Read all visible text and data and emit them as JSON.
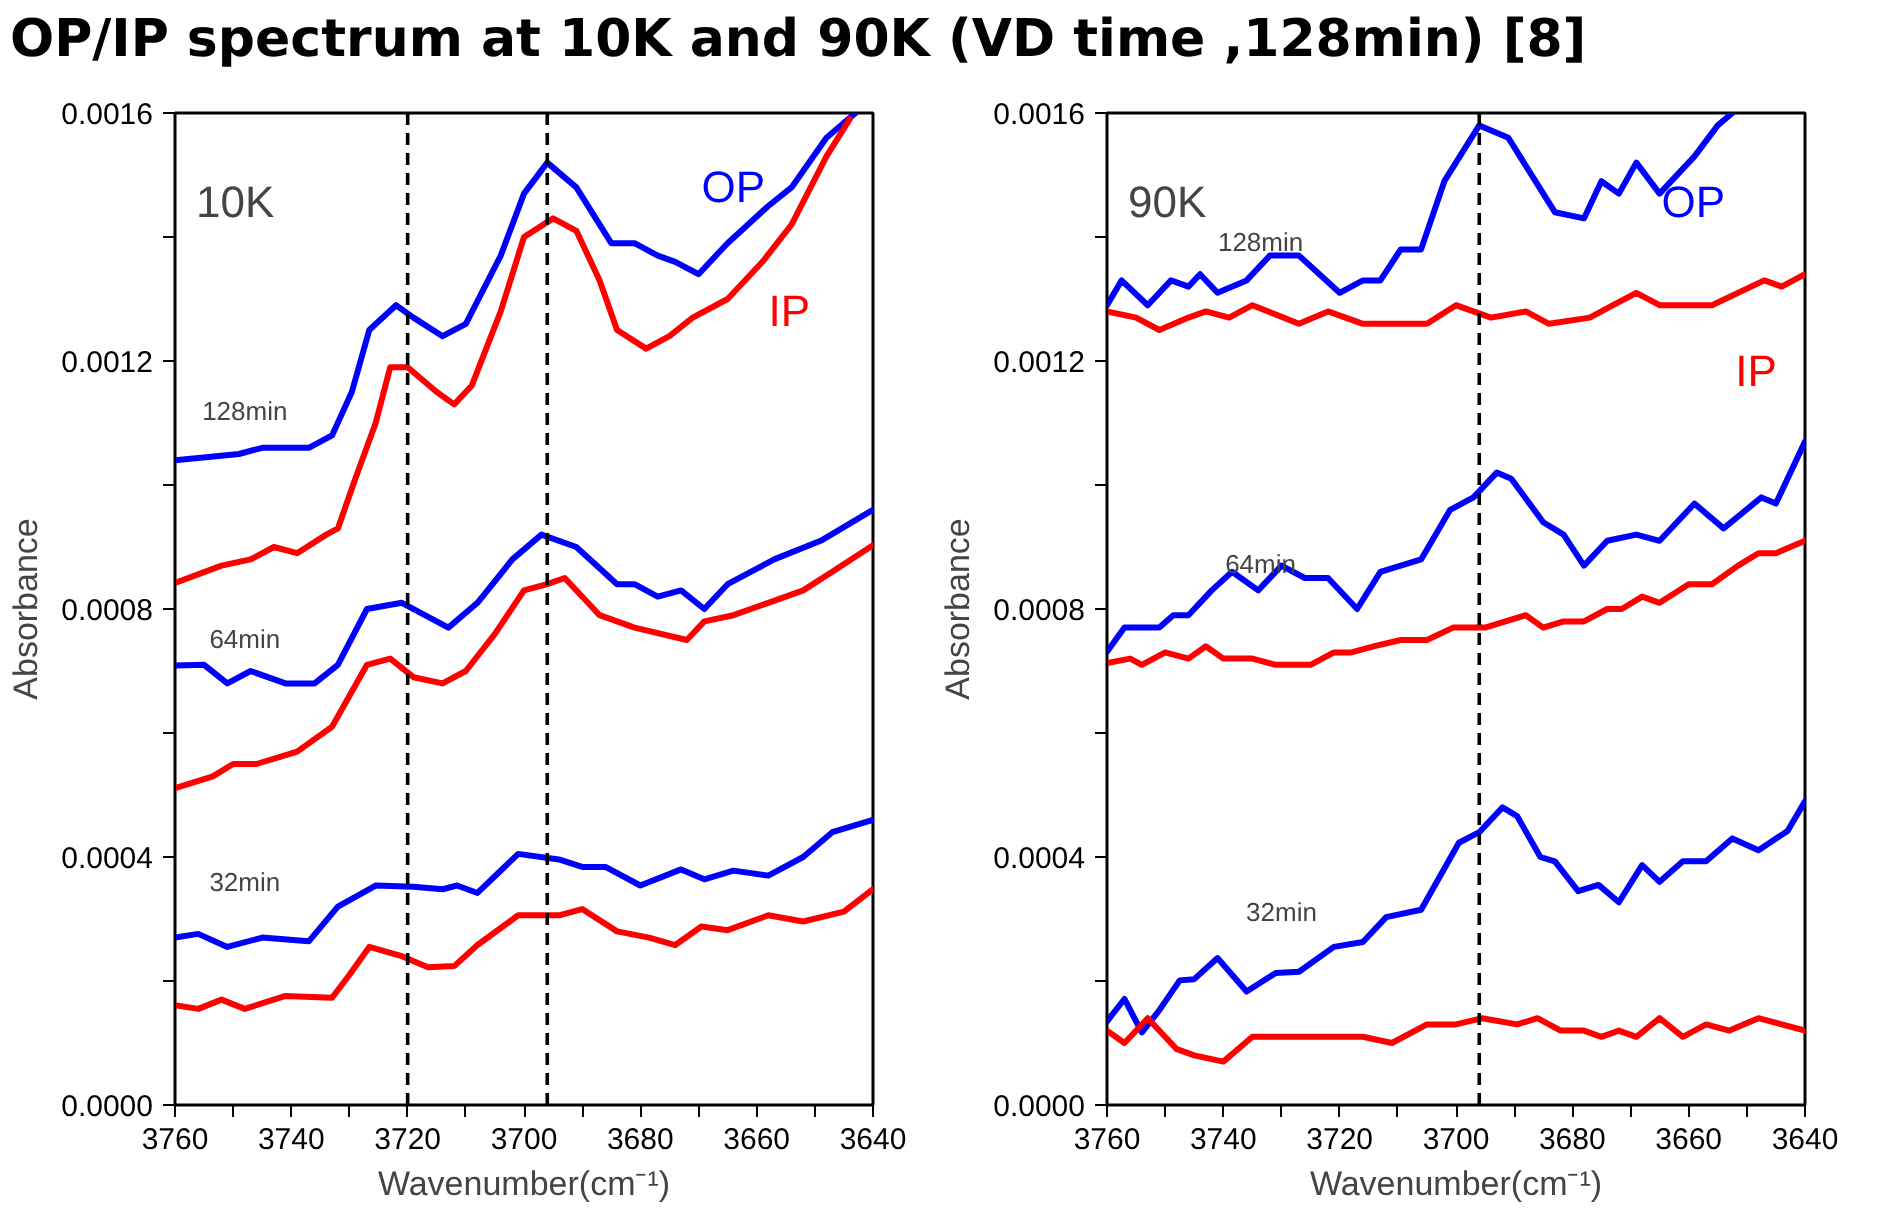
{
  "chart_data": [
    {
      "type": "line",
      "title": "OP/IP spectrum at 10K and 90K (VD time ,128min) [8]",
      "xlabel": "Wavenumber(cm⁻¹)",
      "ylabel": "Absorbance",
      "xlim": [
        3760,
        3640
      ],
      "ylim": [
        0,
        0.0016
      ],
      "xticks": [
        3760,
        {
          "value": 3750,
          "label": null
        },
        3740,
        {
          "value": 3730,
          "label": null
        },
        3720,
        {
          "value": 3710,
          "label": null
        },
        3700,
        {
          "value": 3690,
          "label": null
        },
        3680,
        {
          "value": 3670,
          "label": null
        },
        3660,
        {
          "value": 3650,
          "label": null
        },
        3640
      ],
      "yticks": [
        {
          "value": 0,
          "label": "0.0000"
        },
        {
          "value": 0.0002,
          "label": null
        },
        {
          "value": 0.0004,
          "label": "0.0004"
        },
        {
          "value": 0.0006,
          "label": null
        },
        {
          "value": 0.0008,
          "label": "0.0008"
        },
        {
          "value": 0.001,
          "label": null
        },
        {
          "value": 0.0012,
          "label": "0.0012"
        },
        {
          "value": 0.0014,
          "label": null
        },
        {
          "value": 0.0016,
          "label": "0.0016"
        }
      ],
      "ref_lines": [
        {
          "axis": "x",
          "value": 3720,
          "color": "#000000",
          "line_style": "dashed"
        },
        {
          "axis": "x",
          "value": 3696,
          "color": "#000000",
          "line_style": "dashed"
        }
      ],
      "annotations": [
        "10K",
        "128min",
        "64min",
        "32min"
      ],
      "series": [
        {
          "name": "OP",
          "color": "#0000ff",
          "x": [
            3760,
            3749,
            3745,
            3737,
            3733,
            3729.6,
            3726.6,
            3722,
            3719,
            3714,
            3710,
            3704,
            3700,
            3696,
            3691,
            3685,
            3681,
            3677,
            3674,
            3670,
            3665,
            3658,
            3654,
            3648,
            3643
          ],
          "values": [
            0.00104,
            0.00105,
            0.00106,
            0.00106,
            0.00108,
            0.00115,
            0.00125,
            0.00129,
            0.00127,
            0.00124,
            0.00126,
            0.00137,
            0.00147,
            0.00152,
            0.00148,
            0.00139,
            0.00139,
            0.00137,
            0.00136,
            0.00134,
            0.00139,
            0.00145,
            0.00148,
            0.00156,
            0.0016
          ]
        },
        {
          "name": "IP",
          "color": "#ff0000",
          "x": [
            3760,
            3752,
            3747,
            3743,
            3739,
            3734,
            3732,
            3729,
            3725.5,
            3723,
            3720,
            3715,
            3712,
            3709,
            3704,
            3700,
            3695,
            3691,
            3687,
            3684,
            3679,
            3675,
            3671,
            3665,
            3659,
            3654,
            3648,
            3644
          ],
          "values": [
            0.000842,
            0.00087,
            0.00088,
            0.0009,
            0.00089,
            0.00092,
            0.00093,
            0.00101,
            0.0011,
            0.00119,
            0.00119,
            0.00115,
            0.00113,
            0.00116,
            0.00128,
            0.0014,
            0.00143,
            0.00141,
            0.00133,
            0.00125,
            0.00122,
            0.00124,
            0.00127,
            0.0013,
            0.00136,
            0.00142,
            0.00153,
            0.00159
          ]
        },
        {
          "color": "#0000ff",
          "x": [
            3760,
            3755,
            3751,
            3747,
            3741,
            3736,
            3732,
            3727,
            3721,
            3713,
            3708,
            3702,
            3697,
            3691,
            3684,
            3681,
            3677,
            3673,
            3669,
            3665,
            3657,
            3649,
            3640
          ],
          "values": [
            0.000709,
            0.00071,
            0.00068,
            0.0007,
            0.00068,
            0.00068,
            0.00071,
            0.0008,
            0.00081,
            0.00077,
            0.00081,
            0.00088,
            0.00092,
            0.0009,
            0.00084,
            0.00084,
            0.00082,
            0.00083,
            0.0008,
            0.00084,
            0.00088,
            0.00091,
            0.00096
          ]
        },
        {
          "color": "#ff0000",
          "x": [
            3760,
            3753.5,
            3750,
            3746,
            3739,
            3733,
            3727,
            3723,
            3719,
            3714,
            3710,
            3705,
            3700,
            3696,
            3693,
            3687,
            3681,
            3672,
            3669,
            3664,
            3658,
            3652,
            3647,
            3640
          ],
          "values": [
            0.000511,
            0.00053,
            0.00055,
            0.00055,
            0.00057,
            0.00061,
            0.00071,
            0.00072,
            0.00069,
            0.00068,
            0.0007,
            0.00076,
            0.00083,
            0.00084,
            0.00085,
            0.00079,
            0.00077,
            0.00075,
            0.00078,
            0.00079,
            0.00081,
            0.00083,
            0.00086,
            0.000903
          ]
        },
        {
          "color": "#0000ff",
          "x": [
            3760,
            3756,
            3751,
            3745,
            3737,
            3732,
            3725.5,
            3719,
            3714,
            3711.5,
            3708,
            3701,
            3694,
            3690,
            3686,
            3680,
            3673,
            3669,
            3664,
            3658,
            3652,
            3647,
            3640
          ],
          "values": [
            0.00027,
            0.000276,
            0.000255,
            0.00027,
            0.000264,
            0.00032,
            0.000354,
            0.000352,
            0.000348,
            0.000354,
            0.000342,
            0.000405,
            0.000396,
            0.000384,
            0.000384,
            0.000354,
            0.00038,
            0.000364,
            0.000378,
            0.00037,
            0.0004,
            0.00044,
            0.00046
          ]
        },
        {
          "color": "#ff0000",
          "x": [
            3760,
            3756,
            3752,
            3748,
            3741,
            3733,
            3730,
            3726.6,
            3721,
            3716.5,
            3712,
            3708,
            3701,
            3694,
            3690,
            3684,
            3678.5,
            3674,
            3669.5,
            3665,
            3658,
            3652,
            3645,
            3640
          ],
          "values": [
            0.000161,
            0.000155,
            0.00017,
            0.000155,
            0.000176,
            0.000173,
            0.00021,
            0.000255,
            0.00024,
            0.000222,
            0.000224,
            0.000258,
            0.000306,
            0.000306,
            0.000316,
            0.00028,
            0.00027,
            0.000258,
            0.000288,
            0.000282,
            0.000306,
            0.000296,
            0.000312,
            0.000348
          ]
        }
      ]
    },
    {
      "type": "line",
      "xlabel": "Wavenumber(cm⁻¹)",
      "ylabel": "Absorbance",
      "xlim": [
        3760,
        3640
      ],
      "ylim": [
        0,
        0.0016
      ],
      "xticks": [
        3760,
        {
          "value": 3750,
          "label": null
        },
        3740,
        {
          "value": 3730,
          "label": null
        },
        3720,
        {
          "value": 3710,
          "label": null
        },
        3700,
        {
          "value": 3690,
          "label": null
        },
        3680,
        {
          "value": 3670,
          "label": null
        },
        3660,
        {
          "value": 3650,
          "label": null
        },
        3640
      ],
      "yticks": [
        {
          "value": 0,
          "label": "0.0000"
        },
        {
          "value": 0.0002,
          "label": null
        },
        {
          "value": 0.0004,
          "label": "0.0004"
        },
        {
          "value": 0.0006,
          "label": null
        },
        {
          "value": 0.0008,
          "label": "0.0008"
        },
        {
          "value": 0.001,
          "label": null
        },
        {
          "value": 0.0012,
          "label": "0.0012"
        },
        {
          "value": 0.0014,
          "label": null
        },
        {
          "value": 0.0016,
          "label": "0.0016"
        }
      ],
      "ref_lines": [
        {
          "axis": "x",
          "value": 3696,
          "color": "#000000",
          "line_style": "dashed"
        }
      ],
      "annotations": [
        "90K",
        "128min",
        "64min",
        "32min"
      ],
      "series": [
        {
          "name": "OP",
          "color": "#0000ff",
          "x": [
            3760,
            3757.5,
            3753,
            3749,
            3746,
            3744,
            3741,
            3736,
            3732,
            3727,
            3720,
            3716,
            3713,
            3709.5,
            3706,
            3702,
            3696,
            3691,
            3685,
            3683,
            3678,
            3675,
            3672,
            3669,
            3665,
            3659,
            3655,
            3652.5
          ],
          "values": [
            0.00129,
            0.00133,
            0.00129,
            0.00133,
            0.00132,
            0.00134,
            0.00131,
            0.00133,
            0.00137,
            0.00137,
            0.00131,
            0.00133,
            0.00133,
            0.00138,
            0.00138,
            0.00149,
            0.00158,
            0.00156,
            0.00147,
            0.00144,
            0.00143,
            0.00149,
            0.00147,
            0.00152,
            0.00147,
            0.00153,
            0.00158,
            0.0016
          ]
        },
        {
          "name": "IP",
          "color": "#ff0000",
          "x": [
            3760,
            3755,
            3751,
            3746,
            3743,
            3739,
            3735,
            3727,
            3722,
            3716,
            3705,
            3700,
            3694,
            3688,
            3684,
            3677,
            3673,
            3669,
            3665,
            3656,
            3647,
            3644,
            3640
          ],
          "values": [
            0.00128,
            0.00127,
            0.00125,
            0.00127,
            0.00128,
            0.00127,
            0.00129,
            0.00126,
            0.00128,
            0.00126,
            0.00126,
            0.00129,
            0.00127,
            0.00128,
            0.00126,
            0.00127,
            0.00129,
            0.00131,
            0.00129,
            0.00129,
            0.00133,
            0.00132,
            0.00134
          ]
        },
        {
          "color": "#0000ff",
          "x": [
            3760,
            3757,
            3754,
            3751,
            3748.6,
            3746,
            3742,
            3738.5,
            3734,
            3730,
            3726,
            3722,
            3717,
            3713,
            3706,
            3701,
            3697,
            3693,
            3690.5,
            3685,
            3681.5,
            3678,
            3674,
            3669,
            3665,
            3659,
            3654,
            3647.5,
            3645,
            3640
          ],
          "values": [
            0.000731,
            0.00077,
            0.00077,
            0.00077,
            0.00079,
            0.00079,
            0.00083,
            0.00086,
            0.00083,
            0.00087,
            0.00085,
            0.00085,
            0.0008,
            0.00086,
            0.00088,
            0.00096,
            0.00098,
            0.00102,
            0.00101,
            0.00094,
            0.00092,
            0.00087,
            0.00091,
            0.00092,
            0.00091,
            0.00097,
            0.00093,
            0.00098,
            0.00097,
            0.00107
          ]
        },
        {
          "color": "#ff0000",
          "x": [
            3760,
            3756,
            3754,
            3750,
            3746,
            3743,
            3740,
            3735,
            3731,
            3725,
            3721,
            3718,
            3714,
            3709.5,
            3705,
            3700.5,
            3695,
            3688,
            3685,
            3681.5,
            3678,
            3674,
            3671.5,
            3668,
            3665,
            3660,
            3656,
            3651.5,
            3648,
            3645,
            3640
          ],
          "values": [
            0.000713,
            0.00072,
            0.00071,
            0.00073,
            0.00072,
            0.00074,
            0.00072,
            0.00072,
            0.00071,
            0.00071,
            0.00073,
            0.00073,
            0.00074,
            0.00075,
            0.00075,
            0.00077,
            0.00077,
            0.00079,
            0.00077,
            0.00078,
            0.00078,
            0.0008,
            0.0008,
            0.00082,
            0.00081,
            0.00084,
            0.00084,
            0.00087,
            0.00089,
            0.00089,
            0.00091
          ]
        },
        {
          "color": "#0000ff",
          "x": [
            3760,
            3757,
            3754,
            3751,
            3747.5,
            3745,
            3741,
            3736,
            3731,
            3727,
            3721,
            3716,
            3712,
            3706,
            3699.5,
            3696,
            3692,
            3689.5,
            3685.5,
            3683,
            3679,
            3675.5,
            3672,
            3668,
            3665,
            3661,
            3657,
            3652.5,
            3648,
            3643,
            3640
          ],
          "values": [
            0.000135,
            0.000171,
            0.000117,
            0.000153,
            0.000201,
            0.000203,
            0.000237,
            0.000183,
            0.000213,
            0.000215,
            0.000255,
            0.000263,
            0.000303,
            0.000315,
            0.000423,
            0.00044,
            0.00048,
            0.000466,
            0.0004,
            0.000393,
            0.000345,
            0.000355,
            0.000327,
            0.000387,
            0.00036,
            0.000393,
            0.000393,
            0.00043,
            0.000411,
            0.000442,
            0.00049
          ]
        },
        {
          "color": "#ff0000",
          "x": [
            3760,
            3757,
            3753,
            3748,
            3745,
            3740,
            3735,
            3727,
            3716,
            3711,
            3705,
            3700,
            3695.5,
            3689.5,
            3686,
            3682,
            3678,
            3675,
            3672,
            3669,
            3665,
            3661,
            3657,
            3653,
            3648,
            3640
          ],
          "values": [
            0.00012,
            0.0001,
            0.00014,
            9e-05,
            8e-05,
            7e-05,
            0.00011,
            0.00011,
            0.00011,
            0.0001,
            0.00013,
            0.00013,
            0.00014,
            0.00013,
            0.00014,
            0.00012,
            0.00012,
            0.00011,
            0.00012,
            0.00011,
            0.00014,
            0.00011,
            0.00013,
            0.00012,
            0.00014,
            0.00012
          ]
        }
      ]
    }
  ]
}
